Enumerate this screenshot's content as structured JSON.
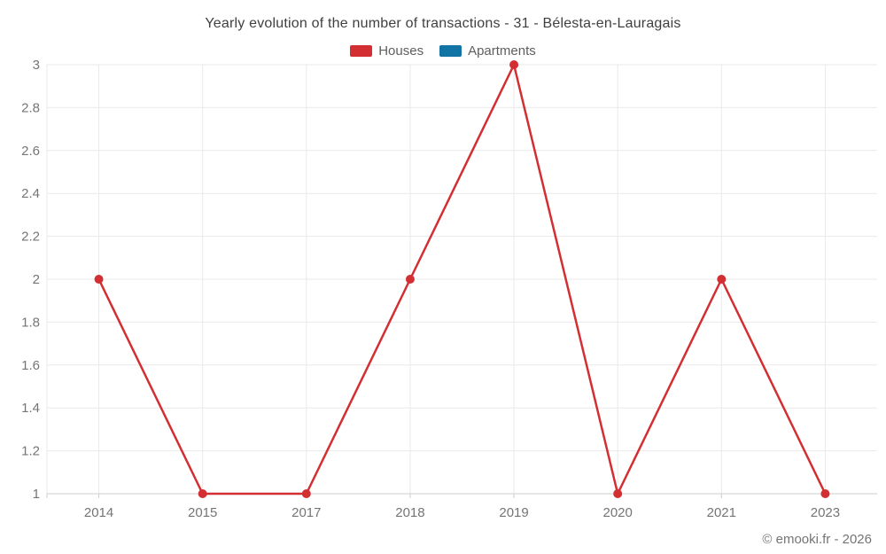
{
  "page": {
    "title": "Yearly evolution of the number of transactions - 31 - Bélesta-en-Lauragais",
    "watermark": "© emooki.fr - 2026"
  },
  "colors": {
    "houses": "#d32f33",
    "apartments": "#1273a5",
    "grid": "#e9e9e9",
    "axis_line": "#cdcdcd",
    "axis_label": "#757575",
    "title_text": "#404040",
    "legend_text": "#5e5e5e",
    "background": "#ffffff"
  },
  "legend": {
    "items": [
      {
        "label": "Houses",
        "color": "#d32f33"
      },
      {
        "label": "Apartments",
        "color": "#1273a5"
      }
    ]
  },
  "chart_data": {
    "type": "line",
    "title": "Yearly evolution of the number of transactions - 31 - Bélesta-en-Lauragais",
    "categories": [
      "2014",
      "2015",
      "2017",
      "2018",
      "2019",
      "2020",
      "2021",
      "2023"
    ],
    "series": [
      {
        "name": "Houses",
        "color": "#d32f33",
        "values": [
          2,
          1,
          1,
          2,
          3,
          1,
          2,
          1
        ]
      },
      {
        "name": "Apartments",
        "color": "#1273a5",
        "values": []
      }
    ],
    "xlabel": "",
    "ylabel": "",
    "ylim": [
      1,
      3
    ],
    "ytick_step": 0.2,
    "ytick_labels": [
      "1",
      "1.2",
      "1.4",
      "1.6",
      "1.8",
      "2",
      "2.2",
      "2.4",
      "2.6",
      "2.8",
      "3"
    ],
    "grid": true,
    "legend_position": "top"
  }
}
